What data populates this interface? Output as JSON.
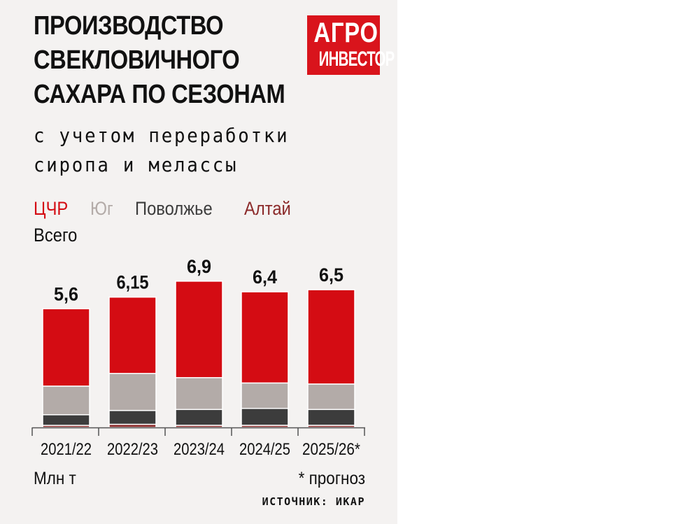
{
  "title_lines": [
    "ПРОИЗВОДСТВО",
    "СВЕКЛОВИЧНОГО",
    "САХАРА ПО СЕЗОНАМ"
  ],
  "subtitle_lines": [
    "с учетом переработки",
    "сиропа и мелассы"
  ],
  "logo": {
    "line1": "АГРО",
    "line2": "ИНВЕСТОР",
    "color": "#d9141c"
  },
  "legend": [
    {
      "name": "ЦЧР",
      "color": "#d40c13"
    },
    {
      "name": "Юг",
      "color": "#b3aba8"
    },
    {
      "name": "Поволжье",
      "color": "#3c3c3c"
    },
    {
      "name": "Алтай",
      "color": "#8b2a2a"
    }
  ],
  "total_label": "Всего",
  "unit": "Млн т",
  "note": "* прогноз",
  "source": "ИСТОЧНИК: ИКАР",
  "chart_data": {
    "type": "bar",
    "stacked": true,
    "categories": [
      "2021/22",
      "2022/23",
      "2023/24",
      "2024/25",
      "2025/26*"
    ],
    "totals": [
      5.6,
      6.15,
      6.9,
      6.4,
      6.5
    ],
    "total_labels": [
      "5,6",
      "6,15",
      "6,9",
      "6,4",
      "6,5"
    ],
    "series": [
      {
        "name": "Алтай",
        "color": "#8b2a2a",
        "values": [
          0.1,
          0.15,
          0.1,
          0.1,
          0.1
        ]
      },
      {
        "name": "Поволжье",
        "color": "#3c3c3c",
        "values": [
          0.5,
          0.65,
          0.75,
          0.8,
          0.75
        ]
      },
      {
        "name": "Юг",
        "color": "#b3aba8",
        "values": [
          1.35,
          1.75,
          1.5,
          1.2,
          1.2
        ]
      },
      {
        "name": "ЦЧР",
        "color": "#d40c13",
        "values": [
          3.65,
          3.6,
          4.55,
          4.3,
          4.45
        ]
      }
    ],
    "ylim": [
      0,
      7.5
    ],
    "grid": false,
    "legend_position": "top"
  }
}
